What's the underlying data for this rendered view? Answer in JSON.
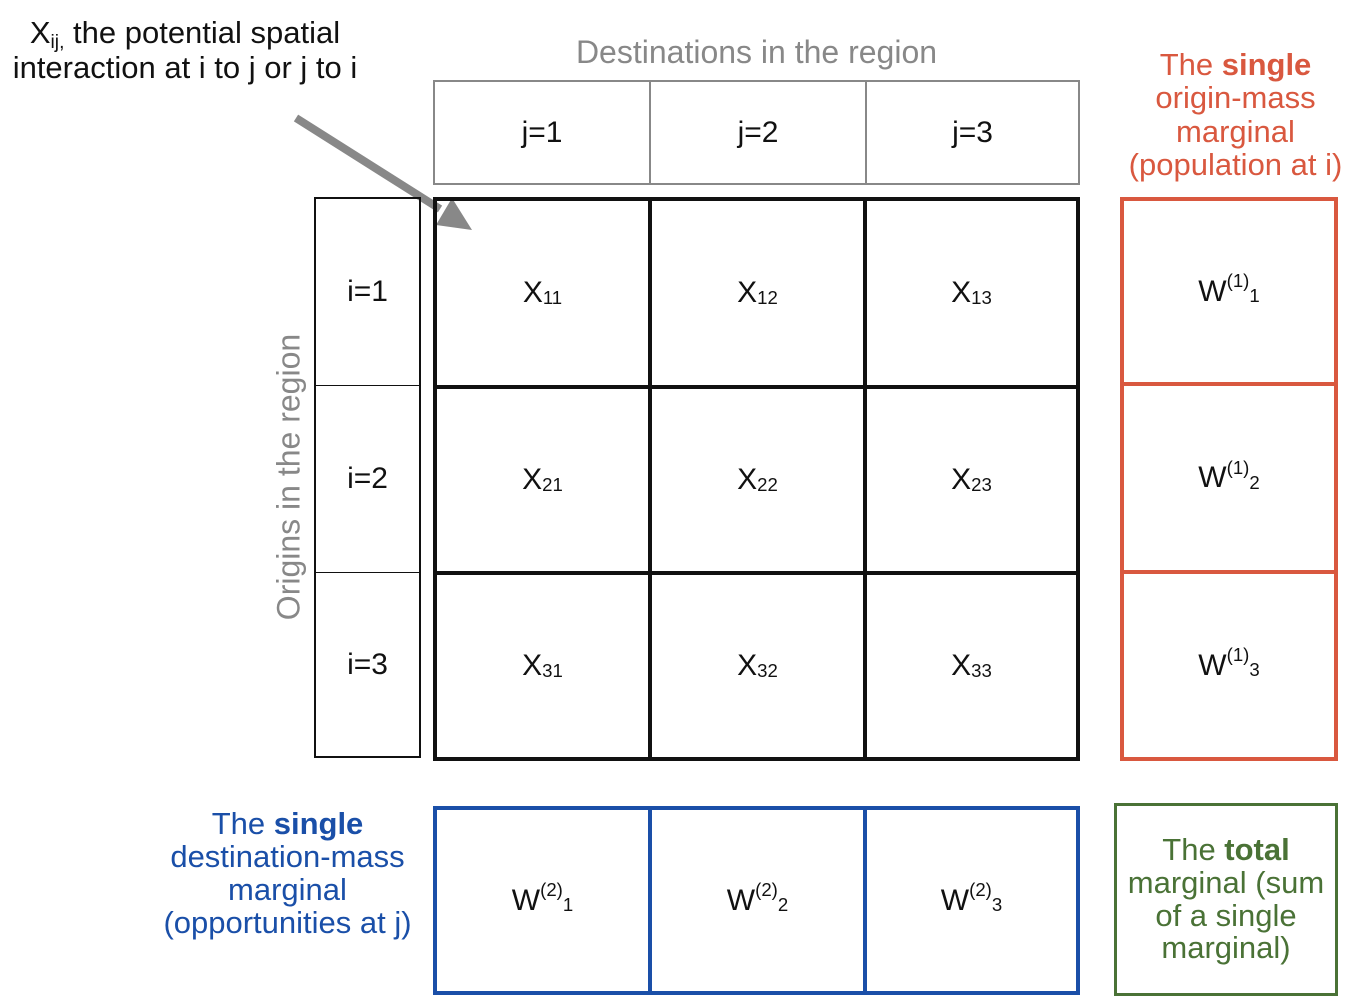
{
  "annotation": {
    "main": "X",
    "sub": "ij,",
    "rest": " the potential spatial interaction at i to j or j to i"
  },
  "destinations_title": "Destinations in the region",
  "origins_title": "Origins in the region",
  "col_headers": [
    "j=1",
    "j=2",
    "j=3"
  ],
  "row_headers": [
    "i=1",
    "i=2",
    "i=3"
  ],
  "matrix": [
    [
      {
        "base": "X",
        "sub": "11"
      },
      {
        "base": "X",
        "sub": "12"
      },
      {
        "base": "X",
        "sub": "13"
      }
    ],
    [
      {
        "base": "X",
        "sub": "21"
      },
      {
        "base": "X",
        "sub": "22"
      },
      {
        "base": "X",
        "sub": "23"
      }
    ],
    [
      {
        "base": "X",
        "sub": "31"
      },
      {
        "base": "X",
        "sub": "32"
      },
      {
        "base": "X",
        "sub": "33"
      }
    ]
  ],
  "origin_marginal": {
    "label_pre": "The ",
    "label_bold": "single",
    "label_post": "origin-mass marginal (population at i)",
    "cells": [
      {
        "base": "W",
        "sup": "(1)",
        "sub": "1"
      },
      {
        "base": "W",
        "sup": "(1)",
        "sub": "2"
      },
      {
        "base": "W",
        "sup": "(1)",
        "sub": "3"
      }
    ],
    "color": "#d9583f"
  },
  "destination_marginal": {
    "label_pre": "The ",
    "label_bold": "single",
    "label_post": "destination-mass marginal (opportunities at j)",
    "cells": [
      {
        "base": "W",
        "sup": "(2)",
        "sub": "1"
      },
      {
        "base": "W",
        "sup": "(2)",
        "sub": "2"
      },
      {
        "base": "W",
        "sup": "(2)",
        "sub": "3"
      }
    ],
    "color": "#1a4fa8"
  },
  "total_marginal": {
    "label_pre": "The ",
    "label_bold": "total",
    "label_post": "marginal (sum of a single marginal)",
    "color": "#4a7236"
  },
  "colors": {
    "grid": "#111111",
    "header_border": "#888888",
    "title_grey": "#888888",
    "arrow": "#888888"
  }
}
